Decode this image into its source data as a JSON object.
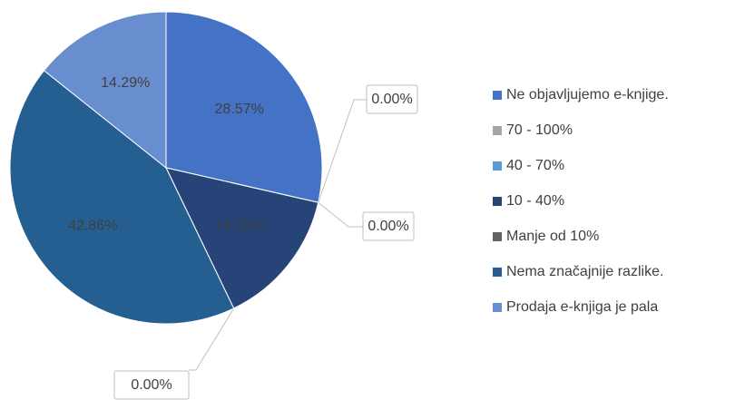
{
  "chart_data": {
    "type": "pie",
    "categories": [
      "Ne objavljujemo e-knjige.",
      "70 - 100%",
      "40 - 70%",
      "10 - 40%",
      "Manje od 10%",
      "Nema značajnije razlike.",
      "Prodaja e-knjiga je pala"
    ],
    "values": [
      28.57,
      0,
      0,
      14.29,
      0,
      42.86,
      14.29
    ],
    "value_labels": [
      "28.57%",
      "0.00%",
      "0.00%",
      "14.29%",
      "0.00%",
      "42.86%",
      "14.29%"
    ],
    "colors": [
      "#4472c4",
      "#a5a5a5",
      "#5b9bd5",
      "#264478",
      "#636363",
      "#255e91",
      "#698ed0"
    ],
    "legend": "right"
  }
}
